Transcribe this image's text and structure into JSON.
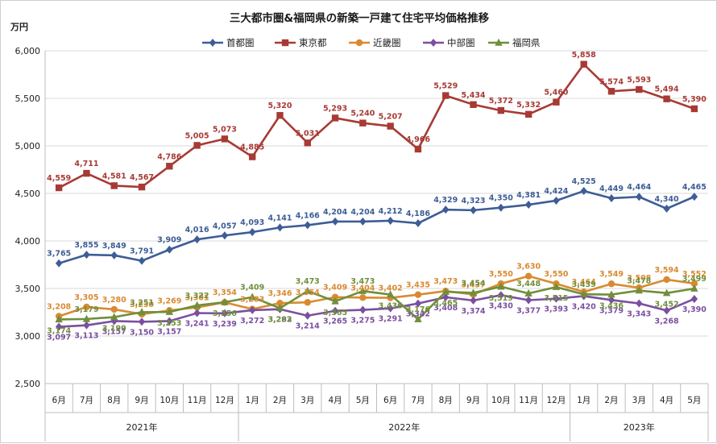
{
  "chart_data": {
    "type": "line",
    "title": "三大都市圏&福岡県の新築一戸建て住宅平均価格推移",
    "unit_label": "万円",
    "ylim": [
      2500,
      6000
    ],
    "yticks": [
      "2,500",
      "3,000",
      "3,500",
      "4,000",
      "4,500",
      "5,000",
      "5,500",
      "6,000"
    ],
    "categories": [
      "6月",
      "7月",
      "8月",
      "9月",
      "10月",
      "11月",
      "12月",
      "1月",
      "2月",
      "3月",
      "4月",
      "5月",
      "6月",
      "7月",
      "8月",
      "9月",
      "10月",
      "11月",
      "12月",
      "1月",
      "2月",
      "3月",
      "4月",
      "5月"
    ],
    "year_groups": [
      {
        "label": "2021年",
        "start": 0,
        "end": 6
      },
      {
        "label": "2022年",
        "start": 7,
        "end": 18
      },
      {
        "label": "2023年",
        "start": 19,
        "end": 23
      }
    ],
    "legend_position": "top-center",
    "grid": true,
    "series": [
      {
        "name": "首都圏",
        "color": "#3d5d96",
        "marker": "diamond",
        "label_pos": "above",
        "values": [
          3765,
          3855,
          3849,
          3791,
          3909,
          4016,
          4057,
          4093,
          4141,
          4166,
          4204,
          4204,
          4212,
          4186,
          4329,
          4323,
          4350,
          4381,
          4424,
          4525,
          4449,
          4464,
          4340,
          4465
        ],
        "labels": [
          "3,765",
          "3,855",
          "3,849",
          "3,791",
          "3,909",
          "4,016",
          "4,057",
          "4,093",
          "4,141",
          "4,166",
          "4,204",
          "4,204",
          "4,212",
          "4,186",
          "4,329",
          "4,323",
          "4,350",
          "4,381",
          "4,424",
          "4,525",
          "4,449",
          "4,464",
          "4,340",
          "4,465"
        ]
      },
      {
        "name": "東京都",
        "color": "#a73a35",
        "marker": "square",
        "label_pos": "above",
        "values": [
          4559,
          4711,
          4581,
          4567,
          4786,
          5005,
          5073,
          4885,
          5320,
          5031,
          5293,
          5240,
          5207,
          4966,
          5529,
          5434,
          5372,
          5332,
          5460,
          5858,
          5574,
          5593,
          5494,
          5390
        ],
        "labels": [
          "4,559",
          "4,711",
          "4,581",
          "4,567",
          "4,786",
          "5,005",
          "5,073",
          "4,885",
          "5,320",
          "5,031",
          "5,293",
          "5,240",
          "5,207",
          "4,966",
          "5,529",
          "5,434",
          "5,372",
          "5,332",
          "5,460",
          "5,858",
          "5,574",
          "5,593",
          "5,494",
          "5,390"
        ]
      },
      {
        "name": "近畿圏",
        "color": "#d98a30",
        "marker": "circle",
        "label_pos": "above",
        "values": [
          3208,
          3305,
          3280,
          3230,
          3269,
          3301,
          3354,
          3283,
          3346,
          3354,
          3409,
          3404,
          3402,
          3435,
          3473,
          3437,
          3550,
          3630,
          3550,
          3464,
          3549,
          3508,
          3594,
          3552
        ],
        "labels": [
          "3,208",
          "3,305",
          "3,280",
          "3,230",
          "3,269",
          "3,301",
          "3,354",
          "3,283",
          "3,346",
          "3,354",
          "3,409",
          "3,404",
          "3,402",
          "3,435",
          "3,473",
          "3,437",
          "3,550",
          "3,630",
          "3,550",
          "3,464",
          "3,549",
          "3,508",
          "3,594",
          "3,552"
        ]
      },
      {
        "name": "中部圏",
        "color": "#7b4fa0",
        "marker": "diamond",
        "label_pos": "below",
        "values": [
          3097,
          3113,
          3157,
          3150,
          3157,
          3241,
          3239,
          3272,
          3282,
          3214,
          3265,
          3275,
          3291,
          3342,
          3408,
          3374,
          3430,
          3377,
          3393,
          3420,
          3379,
          3343,
          3268,
          3390
        ],
        "labels": [
          "3,097",
          "3,113",
          "3,157",
          "3,150",
          "3,157",
          "3,241",
          "3,239",
          "3,272",
          "3,282",
          "3,214",
          "3,265",
          "3,275",
          "3,291",
          "3,342",
          "3,408",
          "3,374",
          "3,430",
          "3,377",
          "3,393",
          "3,420",
          "3,379",
          "3,343",
          "3,268",
          "3,390"
        ]
      },
      {
        "name": "福岡県",
        "color": "#6f8f3a",
        "marker": "triangle",
        "label_pos": "mixed",
        "values": [
          3174,
          3179,
          3199,
          3251,
          3253,
          3322,
          3356,
          3409,
          3293,
          3473,
          3365,
          3473,
          3436,
          3176,
          3465,
          3454,
          3519,
          3448,
          3515,
          3439,
          3436,
          3478,
          3452,
          3499
        ],
        "labels": [
          "3,174",
          "3,179",
          "3,199",
          "3,251",
          "3,253",
          "3,322",
          "3,356",
          "3,409",
          "3,293",
          "3,473",
          "3,365",
          "3,473",
          "3,436",
          "3,176",
          "3,465",
          "3,454",
          "3,519",
          "3,448",
          "3,515",
          "3,439",
          "3,436",
          "3,478",
          "3,452",
          "3,499"
        ]
      }
    ]
  }
}
